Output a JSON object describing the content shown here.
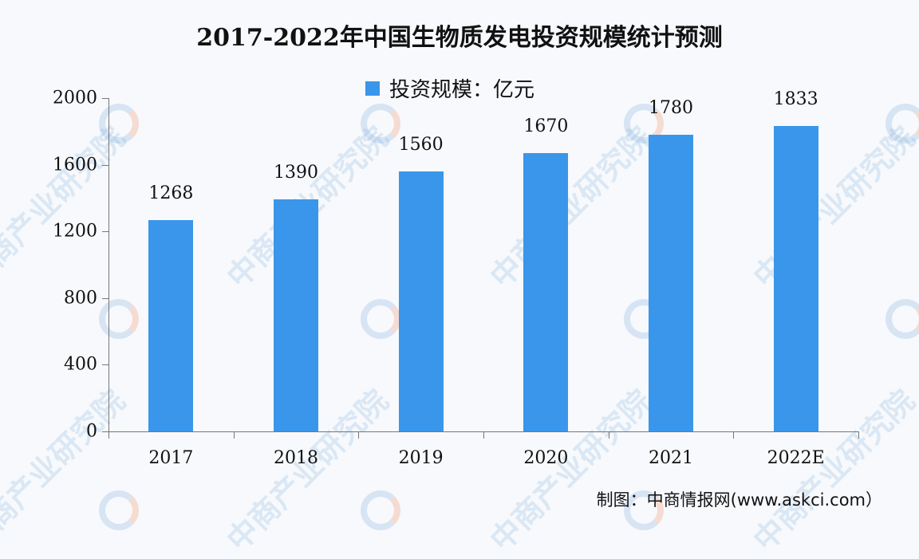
{
  "title": "2017-2022年中国生物质发电投资规模统计预测",
  "legend": {
    "label": "投资规模：亿元",
    "color": "#3a96ea"
  },
  "source": "制图：中商情报网(www.askci.com）",
  "watermark": "中商产业研究院",
  "colors": {
    "bar": "#3a96ea",
    "axis": "#777777",
    "background": "#f7f9fc"
  },
  "y_ticks": [
    "0",
    "400",
    "800",
    "1200",
    "1600",
    "2000"
  ],
  "x_labels": [
    "2017",
    "2018",
    "2019",
    "2020",
    "2021",
    "2022E"
  ],
  "value_labels": [
    "1268",
    "1390",
    "1560",
    "1670",
    "1780",
    "1833"
  ],
  "chart_data": {
    "type": "bar",
    "title": "2017-2022年中国生物质发电投资规模统计预测",
    "categories": [
      "2017",
      "2018",
      "2019",
      "2020",
      "2021",
      "2022E"
    ],
    "series": [
      {
        "name": "投资规模：亿元",
        "values": [
          1268,
          1390,
          1560,
          1670,
          1780,
          1833
        ]
      }
    ],
    "values": [
      1268,
      1390,
      1560,
      1670,
      1780,
      1833
    ],
    "xlabel": "",
    "ylabel": "",
    "ylim": [
      0,
      2000
    ],
    "yticks": [
      0,
      400,
      800,
      1200,
      1600,
      2000
    ],
    "grid": false,
    "legend_position": "top",
    "data_labels": true
  }
}
